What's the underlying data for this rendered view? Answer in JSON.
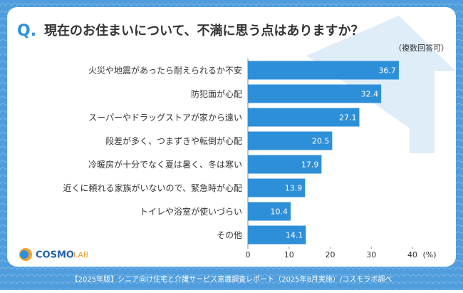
{
  "chart_data": {
    "type": "bar",
    "orientation": "horizontal",
    "question_mark": "Q.",
    "title": "現在のお住まいについて、不満に思う点はありますか？",
    "subtitle": "（複数回答可）",
    "categories": [
      "火災や地震があったら耐えられるか不安",
      "防犯面が心配",
      "スーパーやドラッグストアが家から遠い",
      "段差が多く、つまずきや転倒が心配",
      "冷暖房が十分でなく夏は暑く、冬は寒い",
      "近くに頼れる家族がいないので、緊急時が心配",
      "トイレや浴室が使いづらい",
      "その他"
    ],
    "values": [
      36.7,
      32.4,
      27.1,
      20.5,
      17.9,
      13.9,
      10.4,
      14.1
    ],
    "color": "#2e8fd9",
    "xlim": [
      0,
      40
    ],
    "xticks": [
      0,
      10,
      20,
      30,
      40
    ],
    "x_unit": "(%)",
    "footer": "【2025年版】シニア向け住宅と介護サービス意識調査レポート（2025年8月実施）/コスモラボ調べ",
    "logo": {
      "main": "COSMO",
      "sub": "LAB"
    }
  }
}
